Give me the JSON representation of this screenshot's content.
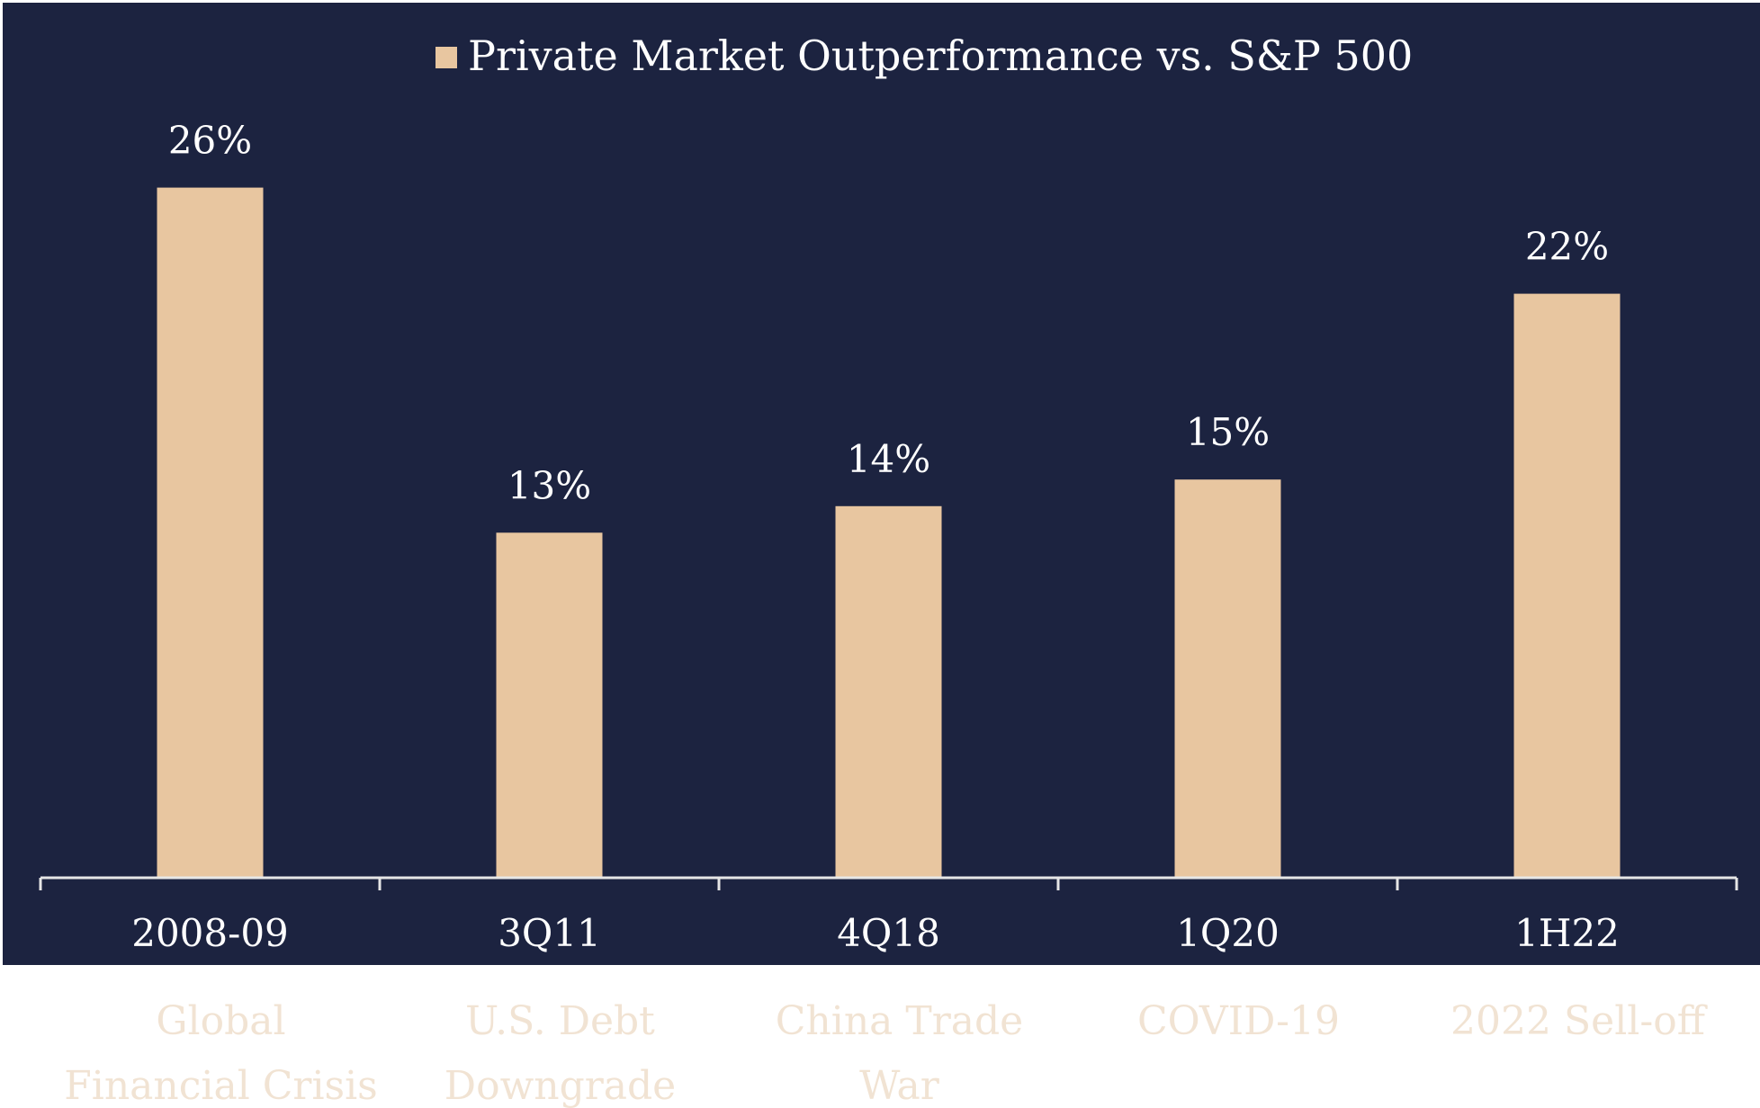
{
  "colors": {
    "background": "#1c2340",
    "bar": "#e8c6a0",
    "axis": "#e6e6e6",
    "text": "#ffffff",
    "event_text": "#f1e3d3",
    "page": "#ffffff"
  },
  "chart_data": {
    "type": "bar",
    "title": "",
    "xlabel": "",
    "ylabel": "",
    "legend_position": "top-center",
    "grid": false,
    "ylim": [
      0,
      29
    ],
    "categories": [
      "2008-09",
      "3Q11",
      "4Q18",
      "1Q20",
      "1H22"
    ],
    "events": [
      [
        "Global",
        "Financial Crisis"
      ],
      [
        "U.S. Debt",
        "Downgrade"
      ],
      [
        "China Trade",
        "War"
      ],
      [
        "COVID-19"
      ],
      [
        "2022 Sell-off"
      ]
    ],
    "series": [
      {
        "name": "Private Market Outperformance vs. S&P 500",
        "values": [
          26,
          13,
          14,
          15,
          22
        ],
        "labels": [
          "26%",
          "13%",
          "14%",
          "15%",
          "22%"
        ]
      }
    ]
  }
}
